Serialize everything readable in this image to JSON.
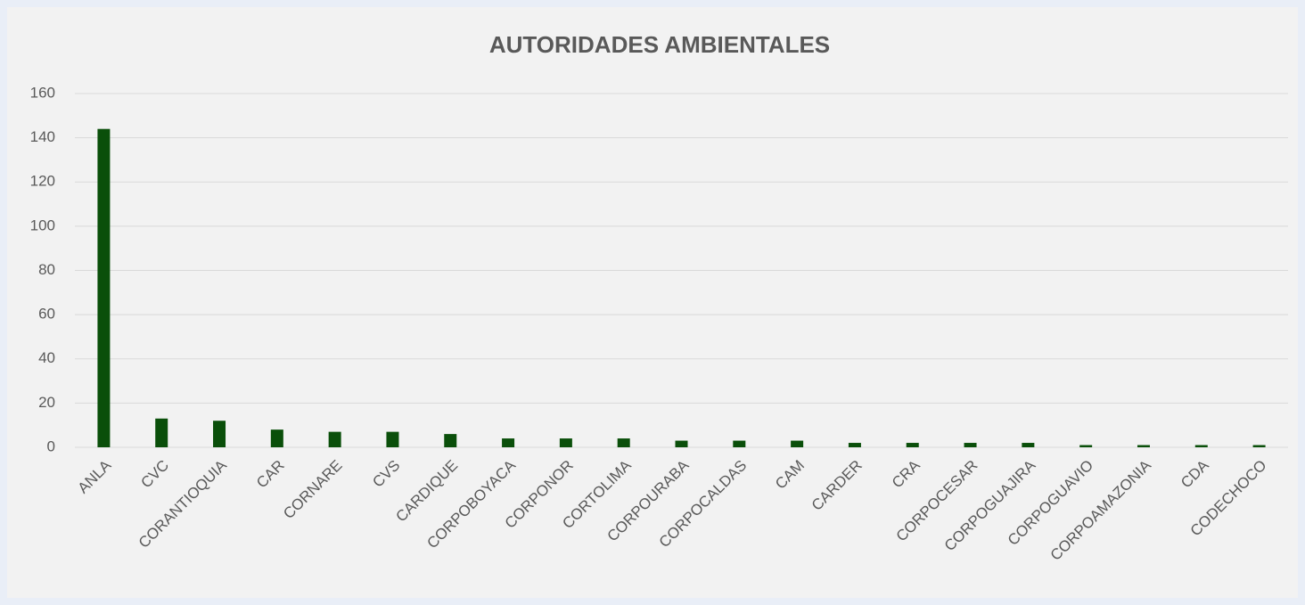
{
  "chart_data": {
    "type": "bar",
    "title": "AUTORIDADES AMBIENTALES",
    "categories": [
      "ANLA",
      "CVC",
      "CORANTIOQUIA",
      "CAR",
      "CORNARE",
      "CVS",
      "CARDIQUE",
      "CORPOBOYACA",
      "CORPONOR",
      "CORTOLIMA",
      "CORPOURABA",
      "CORPOCALDAS",
      "CAM",
      "CARDER",
      "CRA",
      "CORPOCESAR",
      "CORPOGUAJIRA",
      "CORPOGUAVIO",
      "CORPOAMAZONIA",
      "CDA",
      "CODECHOCO"
    ],
    "values": [
      144,
      13,
      12,
      8,
      7,
      7,
      6,
      4,
      4,
      4,
      3,
      3,
      3,
      2,
      2,
      2,
      2,
      1,
      1,
      1,
      1
    ],
    "color": "#0a4f0a",
    "ylim": [
      0,
      160
    ],
    "yticks": [
      0,
      20,
      40,
      60,
      80,
      100,
      120,
      140,
      160
    ],
    "grid": true
  }
}
